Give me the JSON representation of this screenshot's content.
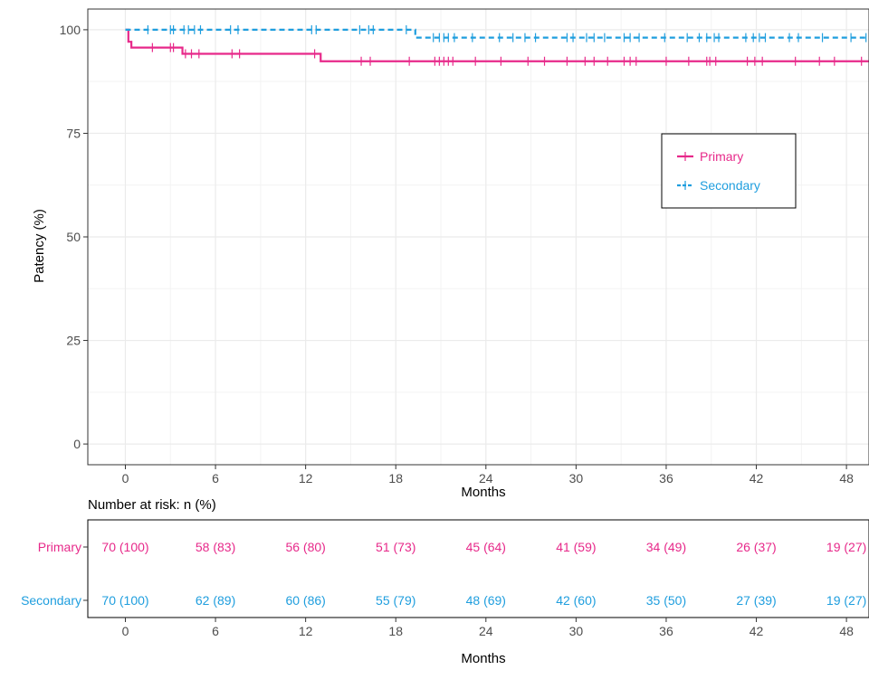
{
  "chart_data": [
    {
      "type": "line",
      "subtype": "kaplan-meier",
      "title": "",
      "xlabel": "Months",
      "ylabel": "Patency (%)",
      "xlim": [
        -2.5,
        49.5
      ],
      "ylim": [
        -5,
        105
      ],
      "x_ticks": [
        0,
        6,
        12,
        18,
        24,
        30,
        36,
        42,
        48
      ],
      "y_ticks": [
        0,
        25,
        50,
        75,
        100
      ],
      "grid": true,
      "legend_position": "right",
      "series": [
        {
          "name": "Primary",
          "color": "#e7298a",
          "dash": "solid",
          "steps": [
            [
              0,
              100
            ],
            [
              0.2,
              97.1
            ],
            [
              0.4,
              95.7
            ],
            [
              3.8,
              94.2
            ],
            [
              13,
              92.4
            ],
            [
              49.5,
              92.4
            ]
          ],
          "censored": [
            [
              1.8,
              95.7
            ],
            [
              3,
              95.7
            ],
            [
              3.2,
              95.7
            ],
            [
              4,
              94.2
            ],
            [
              4.4,
              94.2
            ],
            [
              4.9,
              94.2
            ],
            [
              7.1,
              94.2
            ],
            [
              7.6,
              94.2
            ],
            [
              12.6,
              94.2
            ],
            [
              15.7,
              92.4
            ],
            [
              16.3,
              92.4
            ],
            [
              18.9,
              92.4
            ],
            [
              20.6,
              92.4
            ],
            [
              20.9,
              92.4
            ],
            [
              21.2,
              92.4
            ],
            [
              21.5,
              92.4
            ],
            [
              21.8,
              92.4
            ],
            [
              23.3,
              92.4
            ],
            [
              25,
              92.4
            ],
            [
              26.8,
              92.4
            ],
            [
              27.9,
              92.4
            ],
            [
              29.4,
              92.4
            ],
            [
              30.6,
              92.4
            ],
            [
              31.2,
              92.4
            ],
            [
              32.1,
              92.4
            ],
            [
              33.2,
              92.4
            ],
            [
              33.6,
              92.4
            ],
            [
              34,
              92.4
            ],
            [
              36,
              92.4
            ],
            [
              37.5,
              92.4
            ],
            [
              38.7,
              92.4
            ],
            [
              38.9,
              92.4
            ],
            [
              39.3,
              92.4
            ],
            [
              41.4,
              92.4
            ],
            [
              41.9,
              92.4
            ],
            [
              42.4,
              92.4
            ],
            [
              44.6,
              92.4
            ],
            [
              46.2,
              92.4
            ],
            [
              47.2,
              92.4
            ],
            [
              49,
              92.4
            ]
          ]
        },
        {
          "name": "Secondary",
          "color": "#1f9ede",
          "dash": "dashed",
          "steps": [
            [
              0,
              100
            ],
            [
              19.3,
              98.1
            ],
            [
              49.5,
              98.1
            ]
          ],
          "censored": [
            [
              1.5,
              100
            ],
            [
              3,
              100
            ],
            [
              3.2,
              100
            ],
            [
              3.9,
              100
            ],
            [
              4.2,
              100
            ],
            [
              4.6,
              100
            ],
            [
              5,
              100
            ],
            [
              7,
              100
            ],
            [
              7.5,
              100
            ],
            [
              12.4,
              100
            ],
            [
              12.7,
              100
            ],
            [
              15.6,
              100
            ],
            [
              16.2,
              100
            ],
            [
              16.5,
              100
            ],
            [
              18.7,
              100
            ],
            [
              20.5,
              98.1
            ],
            [
              20.9,
              98.1
            ],
            [
              21.2,
              98.1
            ],
            [
              21.5,
              98.1
            ],
            [
              21.9,
              98.1
            ],
            [
              23.1,
              98.1
            ],
            [
              24.9,
              98.1
            ],
            [
              25.8,
              98.1
            ],
            [
              26.6,
              98.1
            ],
            [
              27.3,
              98.1
            ],
            [
              29.4,
              98.1
            ],
            [
              29.8,
              98.1
            ],
            [
              30.7,
              98.1
            ],
            [
              31.2,
              98.1
            ],
            [
              31.9,
              98.1
            ],
            [
              33.2,
              98.1
            ],
            [
              33.6,
              98.1
            ],
            [
              34.2,
              98.1
            ],
            [
              35.9,
              98.1
            ],
            [
              37.4,
              98.1
            ],
            [
              38.2,
              98.1
            ],
            [
              38.7,
              98.1
            ],
            [
              39.2,
              98.1
            ],
            [
              39.5,
              98.1
            ],
            [
              41.3,
              98.1
            ],
            [
              41.8,
              98.1
            ],
            [
              42.2,
              98.1
            ],
            [
              42.6,
              98.1
            ],
            [
              44.2,
              98.1
            ],
            [
              44.8,
              98.1
            ],
            [
              46.4,
              98.1
            ],
            [
              48.3,
              98.1
            ],
            [
              49.3,
              98.1
            ]
          ]
        }
      ]
    },
    {
      "type": "table",
      "title": "Number at risk: n (%)",
      "xlabel": "Months",
      "x_ticks": [
        0,
        6,
        12,
        18,
        24,
        30,
        36,
        42,
        48
      ],
      "rows": [
        {
          "name": "Primary",
          "color": "#e7298a",
          "values": [
            "70 (100)",
            "58 (83)",
            "56 (80)",
            "51 (73)",
            "45 (64)",
            "41 (59)",
            "34 (49)",
            "26 (37)",
            "19 (27)"
          ]
        },
        {
          "name": "Secondary",
          "color": "#1f9ede",
          "values": [
            "70 (100)",
            "62 (89)",
            "60 (86)",
            "55 (79)",
            "48 (69)",
            "42 (60)",
            "35 (50)",
            "27 (39)",
            "19 (27)"
          ]
        }
      ]
    }
  ]
}
